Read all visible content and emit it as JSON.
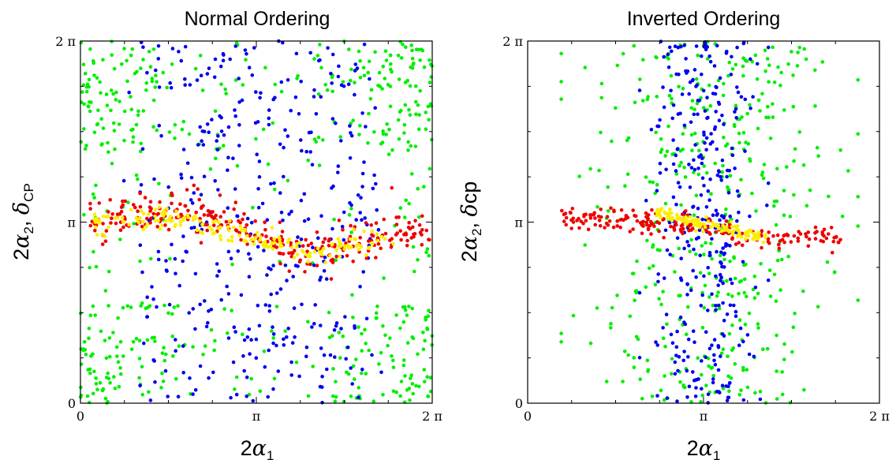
{
  "chart_data": [
    {
      "type": "scatter",
      "title": "Normal Ordering",
      "xlabel": "2α1",
      "ylabel": "2α2, δCP",
      "xlim": [
        0,
        6.2832
      ],
      "ylim": [
        0,
        6.2832
      ],
      "grid": false,
      "x_ticks": [
        {
          "value": 0,
          "label": "0"
        },
        {
          "value": 3.1416,
          "label": "π"
        },
        {
          "value": 6.2832,
          "label": "2 π"
        }
      ],
      "y_ticks": [
        {
          "value": 0,
          "label": "0"
        },
        {
          "value": 3.1416,
          "label": "π"
        },
        {
          "value": 6.2832,
          "label": "2 π"
        }
      ],
      "series": [
        {
          "color": "#00ee00",
          "description": "points scattered across the full plane, denser near x=0 and x=2π and at top and bottom edges",
          "points": 520
        },
        {
          "color": "#0000ee",
          "description": "points concentrated in the central vertical band, x roughly 1.0 to 5.2",
          "points": 380
        },
        {
          "color": "#ee0000",
          "description": "diagonal band from about (0.2, 3.3) to (6.2, 3.0), dipping to about 2.5 near x=4.2",
          "points": 290
        },
        {
          "color": "#ffee00",
          "description": "thin diagonal band inside the red band, from about (0.3, 3.1) to (5.6, 2.7)",
          "points": 190
        }
      ]
    },
    {
      "type": "scatter",
      "title": "Inverted Ordering",
      "xlabel": "2α1",
      "ylabel": "2α2, δcp",
      "xlim": [
        0,
        6.2832
      ],
      "ylim": [
        0,
        6.2832
      ],
      "grid": false,
      "x_ticks": [
        {
          "value": 0,
          "label": "0"
        },
        {
          "value": 3.1416,
          "label": "π"
        },
        {
          "value": 6.2832,
          "label": "2 π"
        }
      ],
      "y_ticks": [
        {
          "value": 0,
          "label": "0"
        },
        {
          "value": 3.1416,
          "label": "π"
        },
        {
          "value": 6.2832,
          "label": "2 π"
        }
      ],
      "series": [
        {
          "color": "#00ee00",
          "description": "points in a broad vertical band, x roughly 1.0 to 5.6",
          "points": 420
        },
        {
          "color": "#0000ee",
          "description": "points in a narrow vertical band, x roughly 2.1 to 4.2",
          "points": 330
        },
        {
          "color": "#ee0000",
          "description": "diagonal band from about (0.6, 3.2) to (5.6, 2.8)",
          "points": 210
        },
        {
          "color": "#ffee00",
          "description": "short diagonal band from about (2.3, 3.3) to (4.3, 2.8)",
          "points": 120
        }
      ]
    }
  ]
}
